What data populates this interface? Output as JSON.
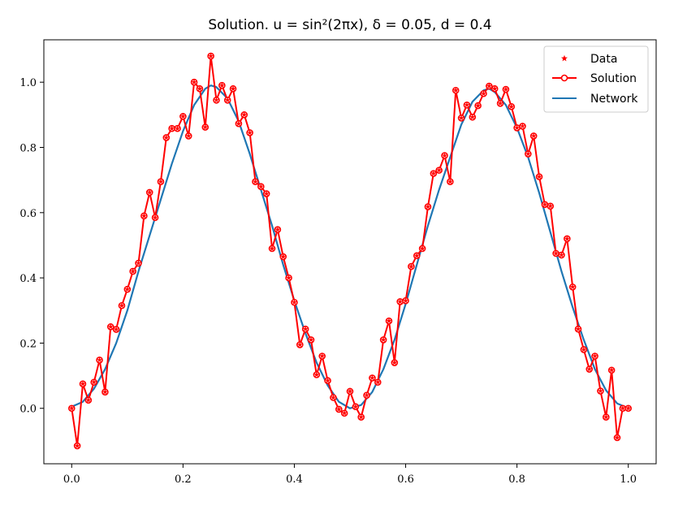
{
  "chart_data": {
    "type": "line",
    "title": "Solution. u = sin²(2πx), δ = 0.05, d = 0.4",
    "xlabel": "",
    "ylabel": "",
    "xlim": [
      -0.05,
      1.05
    ],
    "ylim": [
      -0.17,
      1.13
    ],
    "x_ticks": [
      0.0,
      0.2,
      0.4,
      0.6,
      0.8,
      1.0
    ],
    "x_tick_labels": [
      "0.0",
      "0.2",
      "0.4",
      "0.6",
      "0.8",
      "1.0"
    ],
    "y_ticks": [
      0.0,
      0.2,
      0.4,
      0.6,
      0.8,
      1.0
    ],
    "y_tick_labels": [
      "0.0",
      "0.2",
      "0.4",
      "0.6",
      "0.8",
      "1.0"
    ],
    "grid": false,
    "legend": "top-right",
    "colors": {
      "data": "#ff0000",
      "solution": "#ff0000",
      "network": "#1f77b4"
    },
    "series": [
      {
        "name": "Data",
        "style": "red-star-markers",
        "x": [
          0.0,
          0.01,
          0.02,
          0.03,
          0.04,
          0.05,
          0.06,
          0.07,
          0.08,
          0.09,
          0.1,
          0.11,
          0.12,
          0.13,
          0.14,
          0.15,
          0.16,
          0.17,
          0.18,
          0.19,
          0.2,
          0.21,
          0.22,
          0.23,
          0.24,
          0.25,
          0.26,
          0.27,
          0.28,
          0.29,
          0.3,
          0.31,
          0.32,
          0.33,
          0.34,
          0.35,
          0.36,
          0.37,
          0.38,
          0.39,
          0.4,
          0.41,
          0.42,
          0.43,
          0.44,
          0.45,
          0.46,
          0.47,
          0.48,
          0.49,
          0.5,
          0.51,
          0.52,
          0.53,
          0.54,
          0.55,
          0.56,
          0.57,
          0.58,
          0.59,
          0.6,
          0.61,
          0.62,
          0.63,
          0.64,
          0.65,
          0.66,
          0.67,
          0.68,
          0.69,
          0.7,
          0.71,
          0.72,
          0.73,
          0.74,
          0.75,
          0.76,
          0.77,
          0.78,
          0.79,
          0.8,
          0.81,
          0.82,
          0.83,
          0.84,
          0.85,
          0.86,
          0.87,
          0.88,
          0.89,
          0.9,
          0.91,
          0.92,
          0.93,
          0.94,
          0.95,
          0.96,
          0.97,
          0.98,
          0.99,
          1.0
        ],
        "y": [
          0.0,
          -0.115,
          0.075,
          0.025,
          0.08,
          0.148,
          0.05,
          0.25,
          0.242,
          0.315,
          0.365,
          0.42,
          0.445,
          0.59,
          0.662,
          0.585,
          0.695,
          0.83,
          0.858,
          0.858,
          0.895,
          0.835,
          1.0,
          0.98,
          0.862,
          1.08,
          0.945,
          0.99,
          0.945,
          0.98,
          0.873,
          0.9,
          0.845,
          0.695,
          0.68,
          0.658,
          0.49,
          0.548,
          0.465,
          0.4,
          0.325,
          0.195,
          0.243,
          0.21,
          0.103,
          0.16,
          0.085,
          0.033,
          -0.003,
          -0.015,
          0.052,
          0.005,
          -0.027,
          0.04,
          0.093,
          0.08,
          0.21,
          0.268,
          0.14,
          0.327,
          0.33,
          0.435,
          0.468,
          0.49,
          0.618,
          0.72,
          0.73,
          0.775,
          0.695,
          0.975,
          0.89,
          0.93,
          0.893,
          0.928,
          0.965,
          0.988,
          0.98,
          0.935,
          0.978,
          0.925,
          0.86,
          0.865,
          0.78,
          0.835,
          0.71,
          0.625,
          0.62,
          0.475,
          0.47,
          0.52,
          0.372,
          0.243,
          0.18,
          0.12,
          0.16,
          0.053,
          -0.027,
          0.117,
          -0.09,
          0.0,
          0.0
        ]
      },
      {
        "name": "Solution",
        "style": "red-line-with-circle-markers",
        "x": [
          0.0,
          0.01,
          0.02,
          0.03,
          0.04,
          0.05,
          0.06,
          0.07,
          0.08,
          0.09,
          0.1,
          0.11,
          0.12,
          0.13,
          0.14,
          0.15,
          0.16,
          0.17,
          0.18,
          0.19,
          0.2,
          0.21,
          0.22,
          0.23,
          0.24,
          0.25,
          0.26,
          0.27,
          0.28,
          0.29,
          0.3,
          0.31,
          0.32,
          0.33,
          0.34,
          0.35,
          0.36,
          0.37,
          0.38,
          0.39,
          0.4,
          0.41,
          0.42,
          0.43,
          0.44,
          0.45,
          0.46,
          0.47,
          0.48,
          0.49,
          0.5,
          0.51,
          0.52,
          0.53,
          0.54,
          0.55,
          0.56,
          0.57,
          0.58,
          0.59,
          0.6,
          0.61,
          0.62,
          0.63,
          0.64,
          0.65,
          0.66,
          0.67,
          0.68,
          0.69,
          0.7,
          0.71,
          0.72,
          0.73,
          0.74,
          0.75,
          0.76,
          0.77,
          0.78,
          0.79,
          0.8,
          0.81,
          0.82,
          0.83,
          0.84,
          0.85,
          0.86,
          0.87,
          0.88,
          0.89,
          0.9,
          0.91,
          0.92,
          0.93,
          0.94,
          0.95,
          0.96,
          0.97,
          0.98,
          0.99,
          1.0
        ],
        "y": [
          0.0,
          -0.115,
          0.075,
          0.025,
          0.08,
          0.148,
          0.05,
          0.25,
          0.242,
          0.315,
          0.365,
          0.42,
          0.445,
          0.59,
          0.662,
          0.585,
          0.695,
          0.83,
          0.858,
          0.858,
          0.895,
          0.835,
          1.0,
          0.98,
          0.862,
          1.08,
          0.945,
          0.99,
          0.945,
          0.98,
          0.873,
          0.9,
          0.845,
          0.695,
          0.68,
          0.658,
          0.49,
          0.548,
          0.465,
          0.4,
          0.325,
          0.195,
          0.243,
          0.21,
          0.103,
          0.16,
          0.085,
          0.033,
          -0.003,
          -0.015,
          0.052,
          0.005,
          -0.027,
          0.04,
          0.093,
          0.08,
          0.21,
          0.268,
          0.14,
          0.327,
          0.33,
          0.435,
          0.468,
          0.49,
          0.618,
          0.72,
          0.73,
          0.775,
          0.695,
          0.975,
          0.89,
          0.93,
          0.893,
          0.928,
          0.965,
          0.988,
          0.98,
          0.935,
          0.978,
          0.925,
          0.86,
          0.865,
          0.78,
          0.835,
          0.71,
          0.625,
          0.62,
          0.475,
          0.47,
          0.52,
          0.372,
          0.243,
          0.18,
          0.12,
          0.16,
          0.053,
          -0.027,
          0.117,
          -0.09,
          0.0,
          0.0
        ]
      },
      {
        "name": "Network",
        "style": "blue-line",
        "x": [
          0.0,
          0.02,
          0.04,
          0.06,
          0.08,
          0.1,
          0.12,
          0.14,
          0.16,
          0.18,
          0.2,
          0.22,
          0.24,
          0.25,
          0.26,
          0.28,
          0.3,
          0.32,
          0.34,
          0.36,
          0.38,
          0.4,
          0.42,
          0.44,
          0.46,
          0.48,
          0.5,
          0.52,
          0.54,
          0.56,
          0.58,
          0.6,
          0.62,
          0.64,
          0.66,
          0.68,
          0.7,
          0.72,
          0.74,
          0.75,
          0.76,
          0.78,
          0.8,
          0.82,
          0.84,
          0.86,
          0.88,
          0.9,
          0.92,
          0.94,
          0.96,
          0.98,
          1.0
        ],
        "y": [
          0.005,
          0.02,
          0.06,
          0.12,
          0.2,
          0.3,
          0.42,
          0.53,
          0.64,
          0.75,
          0.85,
          0.93,
          0.98,
          0.99,
          0.985,
          0.95,
          0.88,
          0.78,
          0.67,
          0.56,
          0.44,
          0.33,
          0.23,
          0.14,
          0.07,
          0.02,
          0.0,
          0.01,
          0.05,
          0.12,
          0.21,
          0.32,
          0.44,
          0.56,
          0.67,
          0.77,
          0.87,
          0.94,
          0.975,
          0.98,
          0.97,
          0.93,
          0.86,
          0.77,
          0.66,
          0.54,
          0.42,
          0.31,
          0.21,
          0.12,
          0.055,
          0.015,
          0.0
        ]
      }
    ]
  }
}
